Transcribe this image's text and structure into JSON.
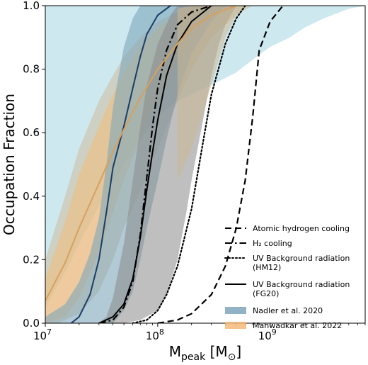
{
  "chart_data": {
    "type": "line",
    "xscale": "log",
    "xlim": [
      10000000,
      7000000000
    ],
    "ylim": [
      0,
      1
    ],
    "xlabel": "M_peak [M_sun]",
    "xlabel_parts": {
      "main": "M",
      "sub": "peak",
      "unit_open": " [M",
      "unit_sub": "⊙",
      "unit_close": "]"
    },
    "ylabel": "Occupation Fraction",
    "x_major_ticks": [
      {
        "value": 10000000,
        "base": "10",
        "exp": "7"
      },
      {
        "value": 100000000,
        "base": "10",
        "exp": "8"
      },
      {
        "value": 1000000000,
        "base": "10",
        "exp": "9"
      }
    ],
    "y_ticks": [
      {
        "value": 0.0,
        "label": "0.0"
      },
      {
        "value": 0.2,
        "label": "0.2"
      },
      {
        "value": 0.4,
        "label": "0.4"
      },
      {
        "value": 0.6,
        "label": "0.6"
      },
      {
        "value": 0.8,
        "label": "0.8"
      },
      {
        "value": 1.0,
        "label": "1.0"
      }
    ],
    "grid": false,
    "legend_position": "lower-right",
    "colors": {
      "nadler": "#7ea6bb",
      "nadler_line": "#1a3d66",
      "manwadkar": "#f5bb7a",
      "manwadkar_line": "#d8a05c",
      "outer_band": "#add8e6",
      "gray_band": "#8a8a8a",
      "tan_band": "#ccb893"
    },
    "bands": [
      {
        "name": "outer-light-band",
        "color": "#add8e6",
        "opacity": 0.6,
        "lower": [
          [
            10000000.0,
            0.05
          ],
          [
            12000000.0,
            0.1
          ],
          [
            15000000.0,
            0.16
          ],
          [
            20000000.0,
            0.25
          ],
          [
            30000000.0,
            0.37
          ],
          [
            50000000.0,
            0.5
          ],
          [
            70000000.0,
            0.58
          ],
          [
            100000000.0,
            0.65
          ],
          [
            150000000.0,
            0.7
          ],
          [
            200000000.0,
            0.72
          ],
          [
            300000000.0,
            0.75
          ],
          [
            500000000.0,
            0.79
          ],
          [
            700000000.0,
            0.83
          ],
          [
            1000000000.0,
            0.87
          ],
          [
            1500000000.0,
            0.9
          ],
          [
            2000000000.0,
            0.93
          ],
          [
            3000000000.0,
            0.96
          ],
          [
            5000000000.0,
            0.99
          ],
          [
            7000000000.0,
            1.0
          ]
        ],
        "upper": [
          [
            10000000.0,
            1.0
          ],
          [
            7000000000.0,
            1.0
          ]
        ]
      },
      {
        "name": "manwadkar-band-outer",
        "color": "#ccb893",
        "opacity": 0.5,
        "lower": [
          [
            10000000.0,
            0.0
          ],
          [
            13000000.0,
            0.0
          ],
          [
            20000000.0,
            0.03
          ],
          [
            30000000.0,
            0.1
          ],
          [
            40000000.0,
            0.2
          ],
          [
            50000000.0,
            0.3
          ],
          [
            70000000.0,
            0.42
          ],
          [
            100000000.0,
            0.55
          ],
          [
            150000000.0,
            0.7
          ],
          [
            200000000.0,
            0.8
          ],
          [
            300000000.0,
            0.9
          ],
          [
            500000000.0,
            0.97
          ],
          [
            700000000.0,
            1.0
          ]
        ],
        "upper": [
          [
            10000000.0,
            0.2
          ],
          [
            15000000.0,
            0.4
          ],
          [
            20000000.0,
            0.55
          ],
          [
            30000000.0,
            0.7
          ],
          [
            40000000.0,
            0.78
          ],
          [
            50000000.0,
            0.84
          ],
          [
            70000000.0,
            0.9
          ],
          [
            100000000.0,
            0.95
          ],
          [
            150000000.0,
            0.98
          ],
          [
            200000000.0,
            1.0
          ]
        ]
      },
      {
        "name": "manwadkar-band",
        "color": "#f5bb7a",
        "opacity": 0.55,
        "lower": [
          [
            10000000.0,
            0.0
          ],
          [
            15000000.0,
            0.02
          ],
          [
            20000000.0,
            0.08
          ],
          [
            30000000.0,
            0.22
          ],
          [
            40000000.0,
            0.35
          ],
          [
            50000000.0,
            0.45
          ],
          [
            70000000.0,
            0.58
          ],
          [
            100000000.0,
            0.7
          ],
          [
            150000000.0,
            0.82
          ],
          [
            200000000.0,
            0.9
          ],
          [
            300000000.0,
            0.97
          ],
          [
            400000000.0,
            1.0
          ]
        ],
        "upper": [
          [
            10000000.0,
            0.14
          ],
          [
            15000000.0,
            0.32
          ],
          [
            20000000.0,
            0.47
          ],
          [
            30000000.0,
            0.62
          ],
          [
            40000000.0,
            0.72
          ],
          [
            50000000.0,
            0.79
          ],
          [
            70000000.0,
            0.87
          ],
          [
            100000000.0,
            0.93
          ],
          [
            150000000.0,
            0.97
          ],
          [
            200000000.0,
            1.0
          ]
        ]
      },
      {
        "name": "nadler-band",
        "color": "#7ea6bb",
        "opacity": 0.6,
        "lower": [
          [
            10000000.0,
            0.0
          ],
          [
            40000000.0,
            0.0
          ],
          [
            50000000.0,
            0.04
          ],
          [
            60000000.0,
            0.1
          ],
          [
            70000000.0,
            0.2
          ],
          [
            80000000.0,
            0.3
          ],
          [
            100000000.0,
            0.45
          ],
          [
            120000000.0,
            0.58
          ],
          [
            150000000.0,
            0.72
          ],
          [
            200000000.0,
            0.85
          ],
          [
            300000000.0,
            0.95
          ],
          [
            400000000.0,
            1.0
          ]
        ],
        "upper": [
          [
            10000000.0,
            0.02
          ],
          [
            15000000.0,
            0.06
          ],
          [
            20000000.0,
            0.13
          ],
          [
            25000000.0,
            0.22
          ],
          [
            30000000.0,
            0.33
          ],
          [
            35000000.0,
            0.5
          ],
          [
            40000000.0,
            0.68
          ],
          [
            50000000.0,
            0.87
          ],
          [
            60000000.0,
            0.96
          ],
          [
            70000000.0,
            1.0
          ]
        ]
      },
      {
        "name": "gray-band",
        "color": "#8a8a8a",
        "opacity": 0.55,
        "lower": [
          [
            10000000.0,
            0.0
          ],
          [
            50000000.0,
            0.0
          ],
          [
            70000000.0,
            0.01
          ],
          [
            100000000.0,
            0.04
          ],
          [
            120000000.0,
            0.09
          ],
          [
            150000000.0,
            0.2
          ],
          [
            180000000.0,
            0.35
          ],
          [
            200000000.0,
            0.45
          ],
          [
            250000000.0,
            0.63
          ],
          [
            300000000.0,
            0.78
          ],
          [
            350000000.0,
            0.88
          ],
          [
            400000000.0,
            0.94
          ],
          [
            500000000.0,
            1.0
          ]
        ],
        "upper": [
          [
            10000000.0,
            0.0
          ],
          [
            30000000.0,
            0.0
          ],
          [
            35000000.0,
            0.02
          ],
          [
            40000000.0,
            0.08
          ],
          [
            50000000.0,
            0.25
          ],
          [
            60000000.0,
            0.45
          ],
          [
            70000000.0,
            0.62
          ],
          [
            80000000.0,
            0.75
          ],
          [
            100000000.0,
            0.88
          ],
          [
            130000000.0,
            0.97
          ],
          [
            150000000.0,
            1.0
          ]
        ]
      },
      {
        "name": "tan-band",
        "color": "#ccb893",
        "opacity": 0.55,
        "lower": [
          [
            150000000.0,
            0.45
          ],
          [
            200000000.0,
            0.55
          ],
          [
            300000000.0,
            0.75
          ],
          [
            400000000.0,
            0.9
          ],
          [
            500000000.0,
            0.97
          ],
          [
            600000000.0,
            1.0
          ]
        ],
        "upper": [
          [
            150000000.0,
            0.99
          ],
          [
            200000000.0,
            1.0
          ],
          [
            600000000.0,
            1.0
          ]
        ]
      }
    ],
    "series": [
      {
        "name": "Atomic hydrogen cooling",
        "style": "dashed",
        "color": "#000000",
        "points": [
          [
            100000000.0,
            0.0
          ],
          [
            150000000.0,
            0.01
          ],
          [
            200000000.0,
            0.03
          ],
          [
            300000000.0,
            0.09
          ],
          [
            400000000.0,
            0.18
          ],
          [
            500000000.0,
            0.3
          ],
          [
            600000000.0,
            0.45
          ],
          [
            700000000.0,
            0.65
          ],
          [
            800000000.0,
            0.86
          ],
          [
            1000000000.0,
            0.95
          ],
          [
            1300000000.0,
            1.0
          ]
        ]
      },
      {
        "name": "H2 cooling",
        "style": "dashdot",
        "color": "#000000",
        "points": [
          [
            30000000.0,
            0.0
          ],
          [
            40000000.0,
            0.01
          ],
          [
            50000000.0,
            0.05
          ],
          [
            60000000.0,
            0.13
          ],
          [
            70000000.0,
            0.28
          ],
          [
            80000000.0,
            0.46
          ],
          [
            90000000.0,
            0.62
          ],
          [
            100000000.0,
            0.74
          ],
          [
            120000000.0,
            0.86
          ],
          [
            150000000.0,
            0.94
          ],
          [
            200000000.0,
            0.98
          ],
          [
            300000000.0,
            1.0
          ]
        ]
      },
      {
        "name": "UV Background radiation (HM12)",
        "style": "dotted",
        "color": "#000000",
        "points": [
          [
            60000000.0,
            0.0
          ],
          [
            80000000.0,
            0.01
          ],
          [
            100000000.0,
            0.04
          ],
          [
            120000000.0,
            0.09
          ],
          [
            150000000.0,
            0.18
          ],
          [
            200000000.0,
            0.36
          ],
          [
            250000000.0,
            0.56
          ],
          [
            300000000.0,
            0.72
          ],
          [
            400000000.0,
            0.88
          ],
          [
            500000000.0,
            0.96
          ],
          [
            600000000.0,
            1.0
          ]
        ]
      },
      {
        "name": "UV Background radiation (FG20)",
        "style": "solid",
        "color": "#000000",
        "points": [
          [
            30000000.0,
            0.0
          ],
          [
            40000000.0,
            0.02
          ],
          [
            50000000.0,
            0.06
          ],
          [
            60000000.0,
            0.14
          ],
          [
            70000000.0,
            0.27
          ],
          [
            80000000.0,
            0.42
          ],
          [
            90000000.0,
            0.54
          ],
          [
            100000000.0,
            0.64
          ],
          [
            120000000.0,
            0.78
          ],
          [
            150000000.0,
            0.88
          ],
          [
            200000000.0,
            0.95
          ],
          [
            300000000.0,
            1.0
          ]
        ]
      },
      {
        "name": "Nadler et al. 2020 (median)",
        "style": "solid",
        "color": "#1a3d66",
        "legend": false,
        "points": [
          [
            17000000.0,
            0.0
          ],
          [
            20000000.0,
            0.02
          ],
          [
            25000000.0,
            0.09
          ],
          [
            30000000.0,
            0.2
          ],
          [
            35000000.0,
            0.35
          ],
          [
            40000000.0,
            0.49
          ],
          [
            50000000.0,
            0.62
          ],
          [
            60000000.0,
            0.74
          ],
          [
            70000000.0,
            0.84
          ],
          [
            80000000.0,
            0.91
          ],
          [
            100000000.0,
            0.97
          ],
          [
            130000000.0,
            1.0
          ]
        ]
      },
      {
        "name": "Manwadkar et al. 2022 (median)",
        "style": "solid",
        "color": "#d8a05c",
        "legend": false,
        "points": [
          [
            10000000.0,
            0.07
          ],
          [
            15000000.0,
            0.19
          ],
          [
            20000000.0,
            0.3
          ],
          [
            30000000.0,
            0.44
          ],
          [
            40000000.0,
            0.54
          ],
          [
            50000000.0,
            0.61
          ],
          [
            70000000.0,
            0.71
          ],
          [
            100000000.0,
            0.8
          ],
          [
            150000000.0,
            0.88
          ],
          [
            200000000.0,
            0.93
          ],
          [
            300000000.0,
            0.97
          ],
          [
            500000000.0,
            1.0
          ]
        ]
      }
    ],
    "legend": [
      {
        "label": "Atomic hydrogen cooling",
        "kind": "line",
        "style": "dashed"
      },
      {
        "label": "H₂ cooling",
        "kind": "line",
        "style": "dashdot"
      },
      {
        "label": "UV Background radiation",
        "label2": "(HM12)",
        "kind": "line",
        "style": "dotted"
      },
      {
        "label": "UV Background radiation",
        "label2": "(FG20)",
        "kind": "line",
        "style": "solid"
      },
      {
        "label": "Nadler et al. 2020",
        "kind": "patch",
        "color": "#7ea6bb"
      },
      {
        "label": "Manwadkar et al. 2022",
        "kind": "patch",
        "color": "#f5bb7a"
      }
    ]
  }
}
